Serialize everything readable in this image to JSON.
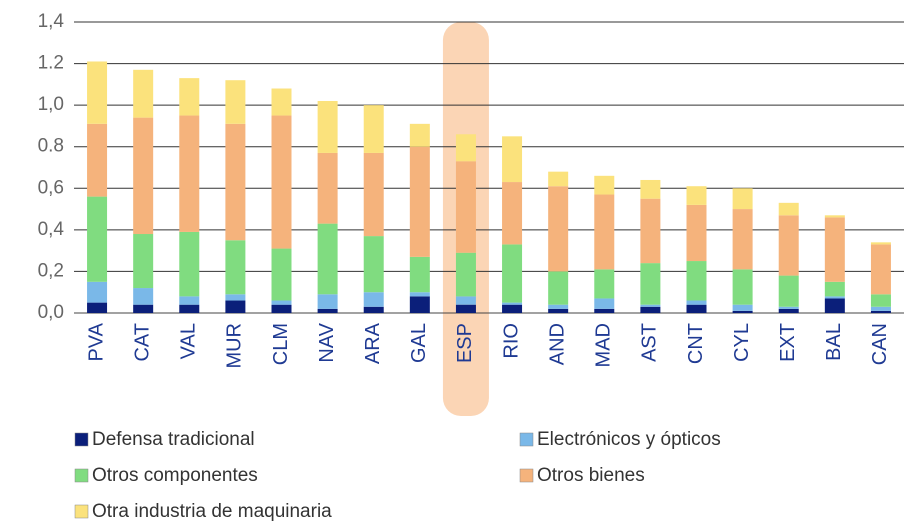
{
  "chart_data": {
    "type": "stacked_bar",
    "categories": [
      "PVA",
      "CAT",
      "VAL",
      "MUR",
      "CLM",
      "NAV",
      "ARA",
      "GAL",
      "ESP",
      "RIO",
      "AND",
      "MAD",
      "AST",
      "CNT",
      "CYL",
      "EXT",
      "BAL",
      "CAN"
    ],
    "series": [
      {
        "name": "Defensa tradicional",
        "color": "#0b1f7a",
        "values": [
          0.05,
          0.04,
          0.04,
          0.06,
          0.04,
          0.02,
          0.03,
          0.08,
          0.04,
          0.04,
          0.02,
          0.02,
          0.03,
          0.04,
          0.01,
          0.02,
          0.07,
          0.01
        ]
      },
      {
        "name": "Electrónicos y ópticos",
        "color": "#7ab8e8",
        "values": [
          0.1,
          0.08,
          0.04,
          0.03,
          0.02,
          0.07,
          0.07,
          0.02,
          0.04,
          0.01,
          0.02,
          0.05,
          0.01,
          0.02,
          0.03,
          0.01,
          0.01,
          0.02
        ]
      },
      {
        "name": "Otros componentes",
        "color": "#80dc80",
        "values": [
          0.41,
          0.26,
          0.31,
          0.26,
          0.25,
          0.34,
          0.27,
          0.17,
          0.21,
          0.28,
          0.16,
          0.14,
          0.2,
          0.19,
          0.17,
          0.15,
          0.07,
          0.06
        ]
      },
      {
        "name": "Otros bienes",
        "color": "#f5b37c",
        "values": [
          0.35,
          0.56,
          0.56,
          0.56,
          0.64,
          0.34,
          0.4,
          0.53,
          0.44,
          0.3,
          0.41,
          0.36,
          0.31,
          0.27,
          0.29,
          0.29,
          0.31,
          0.24
        ]
      },
      {
        "name": "Otra industria de maquinaria",
        "color": "#fbe27c",
        "values": [
          0.3,
          0.23,
          0.18,
          0.21,
          0.13,
          0.25,
          0.23,
          0.11,
          0.13,
          0.22,
          0.07,
          0.09,
          0.09,
          0.09,
          0.1,
          0.06,
          0.01,
          0.01
        ]
      }
    ],
    "ylim": [
      0,
      1.4
    ],
    "yticks": [
      {
        "value": 0,
        "label": "0,0"
      },
      {
        "value": 0.2,
        "label": "0,2"
      },
      {
        "value": 0.4,
        "label": "0,4"
      },
      {
        "value": 0.6,
        "label": "0,6"
      },
      0.8,
      {
        "value": 1,
        "label": "1,0"
      },
      1.2,
      {
        "value": 1.4,
        "label": "1,4"
      }
    ],
    "grid": true
  }
}
